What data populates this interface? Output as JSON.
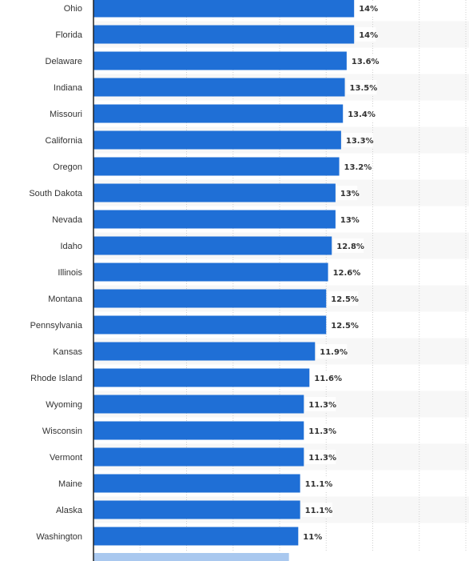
{
  "chart_data": {
    "type": "bar",
    "orientation": "horizontal",
    "categories": [
      "Ohio",
      "Florida",
      "Delaware",
      "Indiana",
      "Missouri",
      "California",
      "Oregon",
      "South Dakota",
      "Nevada",
      "Idaho",
      "Illinois",
      "Montana",
      "Pennsylvania",
      "Kansas",
      "Rhode Island",
      "Wyoming",
      "Wisconsin",
      "Vermont",
      "Maine",
      "Alaska",
      "Washington"
    ],
    "values": [
      14,
      14,
      13.6,
      13.5,
      13.4,
      13.3,
      13.2,
      13,
      13,
      12.8,
      12.6,
      12.5,
      12.5,
      11.9,
      11.6,
      11.3,
      11.3,
      11.3,
      11.1,
      11.1,
      11
    ],
    "value_labels": [
      "14%",
      "14%",
      "13.6%",
      "13.5%",
      "13.4%",
      "13.3%",
      "13.2%",
      "13%",
      "13%",
      "12.8%",
      "12.6%",
      "12.5%",
      "12.5%",
      "11.9%",
      "11.6%",
      "11.3%",
      "11.3%",
      "11.3%",
      "11.1%",
      "11.1%",
      "11%"
    ],
    "partial_next_value": 10.5,
    "xlim": [
      0,
      20
    ],
    "x_gridlines": [
      2.5,
      5,
      7.5,
      10,
      12.5,
      15,
      17.5,
      20
    ],
    "grid": true,
    "title": "",
    "xlabel": "",
    "ylabel": "",
    "colors": {
      "bar": "#1f6fd6",
      "bar_partial": "#a9c8ef",
      "grid": "#cfcfcf",
      "stripe": "#f7f7f7",
      "axis": "#222222",
      "text": "#333333"
    }
  }
}
